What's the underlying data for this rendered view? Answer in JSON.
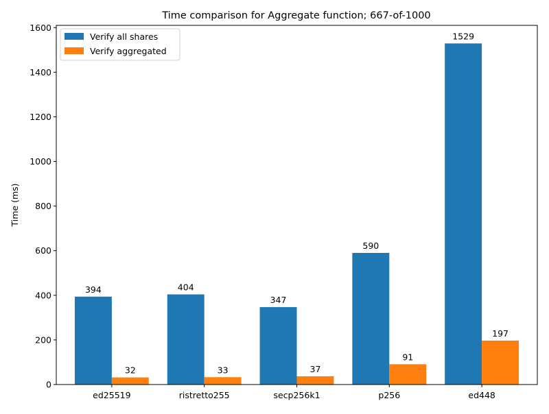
{
  "chart_data": {
    "type": "bar",
    "title": "Time comparison for Aggregate function; 667-of-1000",
    "xlabel": "",
    "ylabel": "Time (ms)",
    "categories": [
      "ed25519",
      "ristretto255",
      "secp256k1",
      "p256",
      "ed448"
    ],
    "series": [
      {
        "name": "Verify all shares",
        "color": "#1f77b4",
        "values": [
          394,
          404,
          347,
          590,
          1529
        ]
      },
      {
        "name": "Verify aggregated",
        "color": "#ff7f0e",
        "values": [
          32,
          33,
          37,
          91,
          197
        ]
      }
    ],
    "ylim": [
      0,
      1610
    ],
    "yticks": [
      0,
      200,
      400,
      600,
      800,
      1000,
      1200,
      1400,
      1600
    ],
    "grid": false,
    "legend_position": "top-left",
    "data_labels": true
  }
}
